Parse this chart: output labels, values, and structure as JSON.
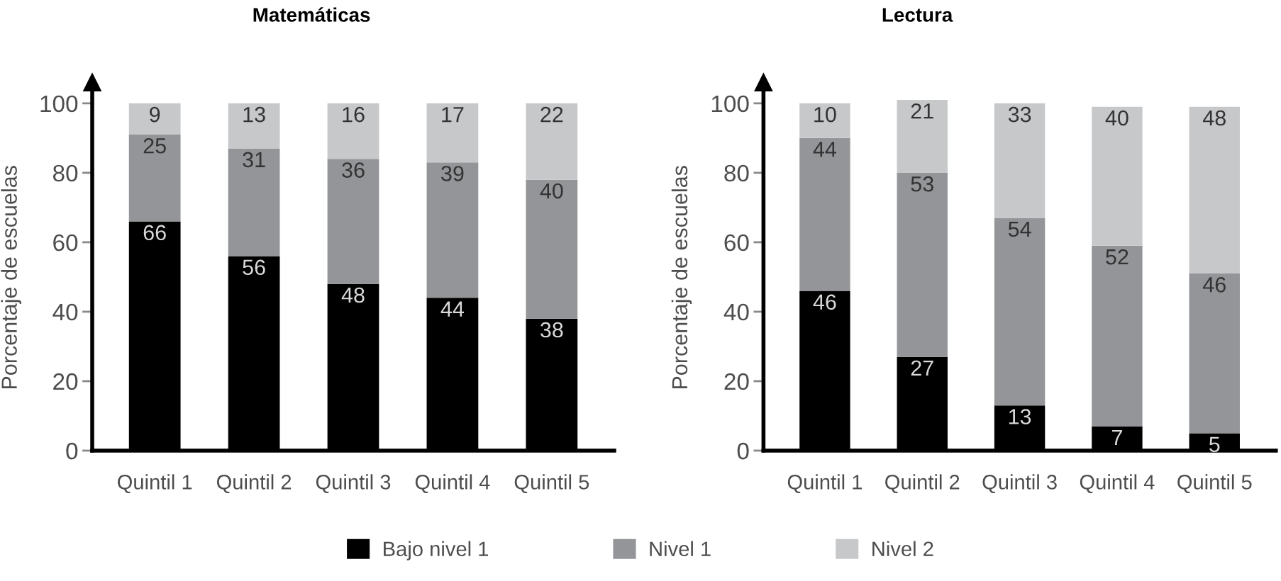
{
  "chart_data": [
    {
      "type": "bar",
      "title": "Matemáticas",
      "ylabel": "Porcentaje de escuelas",
      "categories": [
        "Quintil 1",
        "Quintil 2",
        "Quintil 3",
        "Quintil 4",
        "Quintil 5"
      ],
      "stacked": true,
      "series": [
        {
          "name": "Bajo nivel 1",
          "color": "#000000",
          "values": [
            66,
            56,
            48,
            44,
            38
          ]
        },
        {
          "name": "Nivel 1",
          "color": "#939598",
          "values": [
            25,
            31,
            36,
            39,
            40
          ]
        },
        {
          "name": "Nivel 2",
          "color": "#c7c8ca",
          "values": [
            9,
            13,
            16,
            17,
            22
          ]
        }
      ],
      "ylim": [
        0,
        106
      ],
      "yticks": [
        0,
        20,
        40,
        60,
        80,
        100
      ],
      "data_labels": true,
      "legend": "bottom"
    },
    {
      "type": "bar",
      "title": "Lectura",
      "ylabel": "Porcentaje de escuelas",
      "categories": [
        "Quintil 1",
        "Quintil 2",
        "Quintil 3",
        "Quintil 4",
        "Quintil 5"
      ],
      "stacked": true,
      "series": [
        {
          "name": "Bajo nivel 1",
          "color": "#000000",
          "values": [
            46,
            27,
            13,
            7,
            5
          ]
        },
        {
          "name": "Nivel 1",
          "color": "#939598",
          "values": [
            44,
            53,
            54,
            52,
            46
          ]
        },
        {
          "name": "Nivel 2",
          "color": "#c7c8ca",
          "values": [
            10,
            21,
            33,
            40,
            48
          ]
        }
      ],
      "ylim": [
        0,
        106
      ],
      "yticks": [
        0,
        20,
        40,
        60,
        80,
        100
      ],
      "data_labels": true
    }
  ]
}
